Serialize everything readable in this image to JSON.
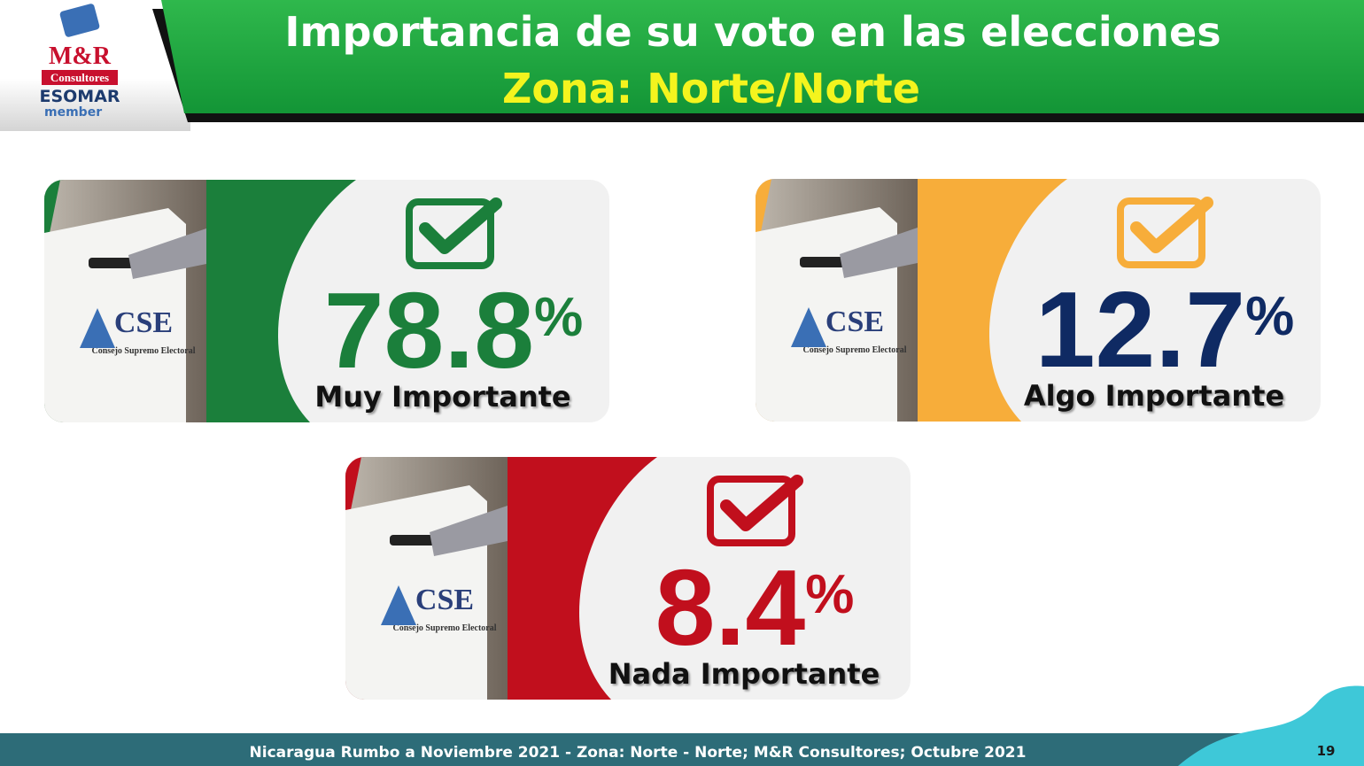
{
  "header": {
    "title": "Importancia de su voto en las elecciones",
    "subtitle": "Zona: Norte/Norte"
  },
  "logo": {
    "brand": "M&R",
    "sub": "Consultores",
    "org": "ESOMAR",
    "tag": "member"
  },
  "photo_text": {
    "acronym": "CSE",
    "name": "Consejo Supremo Electoral"
  },
  "cards": [
    {
      "value": 78.8,
      "unit": "%",
      "label": "Muy Importante",
      "color": "#1b7f3b",
      "value_color": "#1b7f3b"
    },
    {
      "value": 12.7,
      "unit": "%",
      "label": "Algo Importante",
      "color": "#f7ad3a",
      "value_color": "#0f2a63"
    },
    {
      "value": 8.4,
      "unit": "%",
      "label": "Nada Importante",
      "color": "#c10f1d",
      "value_color": "#c10f1d"
    }
  ],
  "footer": {
    "text": "Nicaragua Rumbo a Noviembre 2021 - Zona: Norte - Norte; M&R Consultores; Octubre 2021",
    "page": 19
  }
}
